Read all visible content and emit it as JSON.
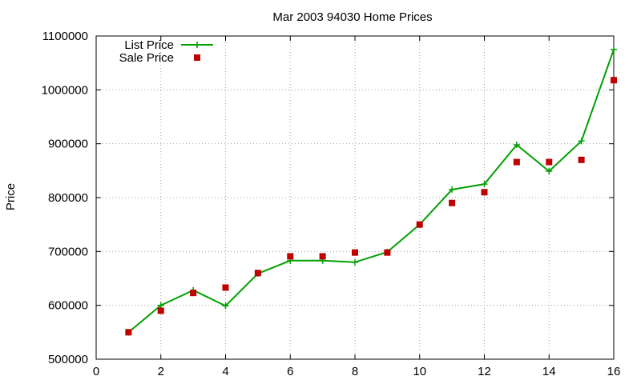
{
  "chart_data": {
    "type": "line",
    "title": "Mar 2003 94030 Home Prices",
    "xlabel": "",
    "ylabel": "Price",
    "xlim": [
      0,
      16
    ],
    "ylim": [
      500000,
      1100000
    ],
    "xticks": [
      0,
      2,
      4,
      6,
      8,
      10,
      12,
      14,
      16
    ],
    "yticks": [
      500000,
      600000,
      700000,
      800000,
      900000,
      1000000,
      1100000
    ],
    "x_tick_labels": [
      "0",
      "2",
      "4",
      "6",
      "8",
      "10",
      "12",
      "14",
      "16"
    ],
    "y_tick_labels": [
      "500000",
      "600000",
      "700000",
      "800000",
      "900000",
      "1000000",
      "1100000"
    ],
    "grid": true,
    "legend_position": "top-left",
    "series": [
      {
        "name": "List Price",
        "style": "line+cross",
        "color": "#00a000",
        "x": [
          1,
          2,
          3,
          4,
          5,
          6,
          7,
          8,
          9,
          10,
          11,
          12,
          13,
          14,
          15,
          16
        ],
        "y": [
          550000,
          600000,
          628000,
          599000,
          659000,
          683000,
          683000,
          680000,
          699000,
          750000,
          815000,
          825000,
          898000,
          849000,
          905000,
          1075000
        ]
      },
      {
        "name": "Sale Price",
        "style": "square",
        "color": "#c00000",
        "x": [
          1,
          2,
          3,
          4,
          5,
          6,
          7,
          8,
          9,
          10,
          11,
          12,
          13,
          14,
          15,
          16
        ],
        "y": [
          550000,
          590000,
          623000,
          633000,
          660000,
          691000,
          691000,
          698000,
          698000,
          750000,
          790000,
          810000,
          866000,
          866000,
          870000,
          1018000
        ]
      }
    ]
  }
}
